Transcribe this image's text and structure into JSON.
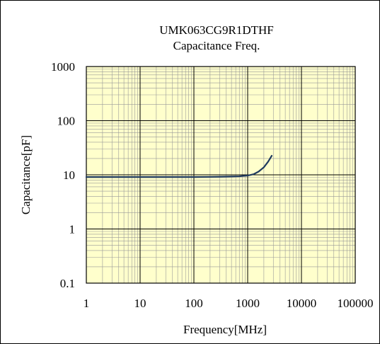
{
  "chart_data": {
    "type": "line",
    "title": "UMK063CG9R1DTHF",
    "subtitle": "Capacitance Freq.",
    "xlabel": "Frequency[MHz]",
    "ylabel": "Capacitance[pF]",
    "x_scale": "log",
    "y_scale": "log",
    "xlim": [
      1,
      100000
    ],
    "ylim": [
      0.1,
      1000
    ],
    "x_ticks": [
      "1",
      "10",
      "100",
      "1000",
      "10000",
      "100000"
    ],
    "y_ticks": [
      "0.1",
      "1",
      "10",
      "100",
      "1000"
    ],
    "grid": true,
    "legend": "none",
    "colors": {
      "plot_background": "#ffffcc",
      "grid_major": "#000000",
      "grid_minor": "#999999",
      "line": "#1f3a5f"
    },
    "series": [
      {
        "x": [
          1,
          2,
          5,
          10,
          20,
          50,
          100,
          200,
          300,
          500,
          700,
          1000,
          1300,
          1600,
          2000,
          2400,
          2800
        ],
        "y": [
          9.1,
          9.1,
          9.1,
          9.1,
          9.1,
          9.1,
          9.1,
          9.15,
          9.2,
          9.3,
          9.4,
          9.7,
          10.3,
          11.5,
          13.8,
          17.5,
          22.5
        ]
      }
    ]
  }
}
